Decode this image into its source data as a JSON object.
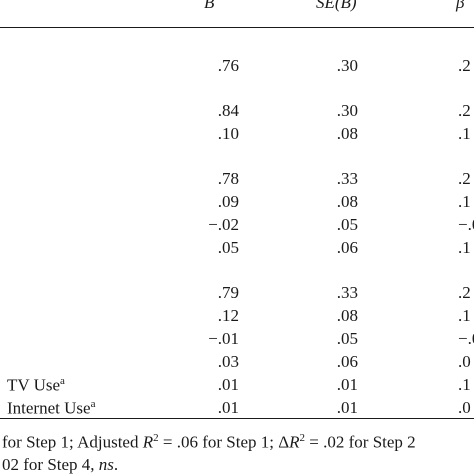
{
  "header": {
    "col_b": "B",
    "col_se": "SE(B)",
    "col_beta": "β"
  },
  "rows": [
    {
      "label": "",
      "b": ".76",
      "se": ".30",
      "beta": ".2"
    },
    {
      "label": "",
      "b": ".84",
      "se": ".30",
      "beta": ".2"
    },
    {
      "label": "",
      "b": ".10",
      "se": ".08",
      "beta": ".1"
    },
    {
      "label": "",
      "b": ".78",
      "se": ".33",
      "beta": ".2"
    },
    {
      "label": "",
      "b": ".09",
      "se": ".08",
      "beta": ".1"
    },
    {
      "label": "",
      "b": "−.02",
      "se": ".05",
      "beta": "−.0"
    },
    {
      "label": "",
      "b": ".05",
      "se": ".06",
      "beta": ".1"
    },
    {
      "label": "",
      "b": ".79",
      "se": ".33",
      "beta": ".2"
    },
    {
      "label": "",
      "b": ".12",
      "se": ".08",
      "beta": ".1"
    },
    {
      "label": "",
      "b": "−.01",
      "se": ".05",
      "beta": "−.0"
    },
    {
      "label": "",
      "b": ".03",
      "se": ".06",
      "beta": ".0"
    },
    {
      "label": "TV Use",
      "label_sup": "a",
      "b": ".01",
      "se": ".01",
      "beta": ".1"
    },
    {
      "label": "Internet Use",
      "label_sup": "a",
      "b": ".01",
      "se": ".01",
      "beta": ".0"
    }
  ],
  "notes": {
    "line1_a": "for Step 1; Adjusted ",
    "line1_var": "R",
    "line1_sup": "2",
    "line1_b": " = .06 for Step 1; Δ",
    "line1_var2": "R",
    "line1_sup2": "2",
    "line1_c": " = .02 for Step 2",
    "line2_a": "02 for Step 4, ",
    "line2_ns": "ns",
    "line2_end": "."
  }
}
